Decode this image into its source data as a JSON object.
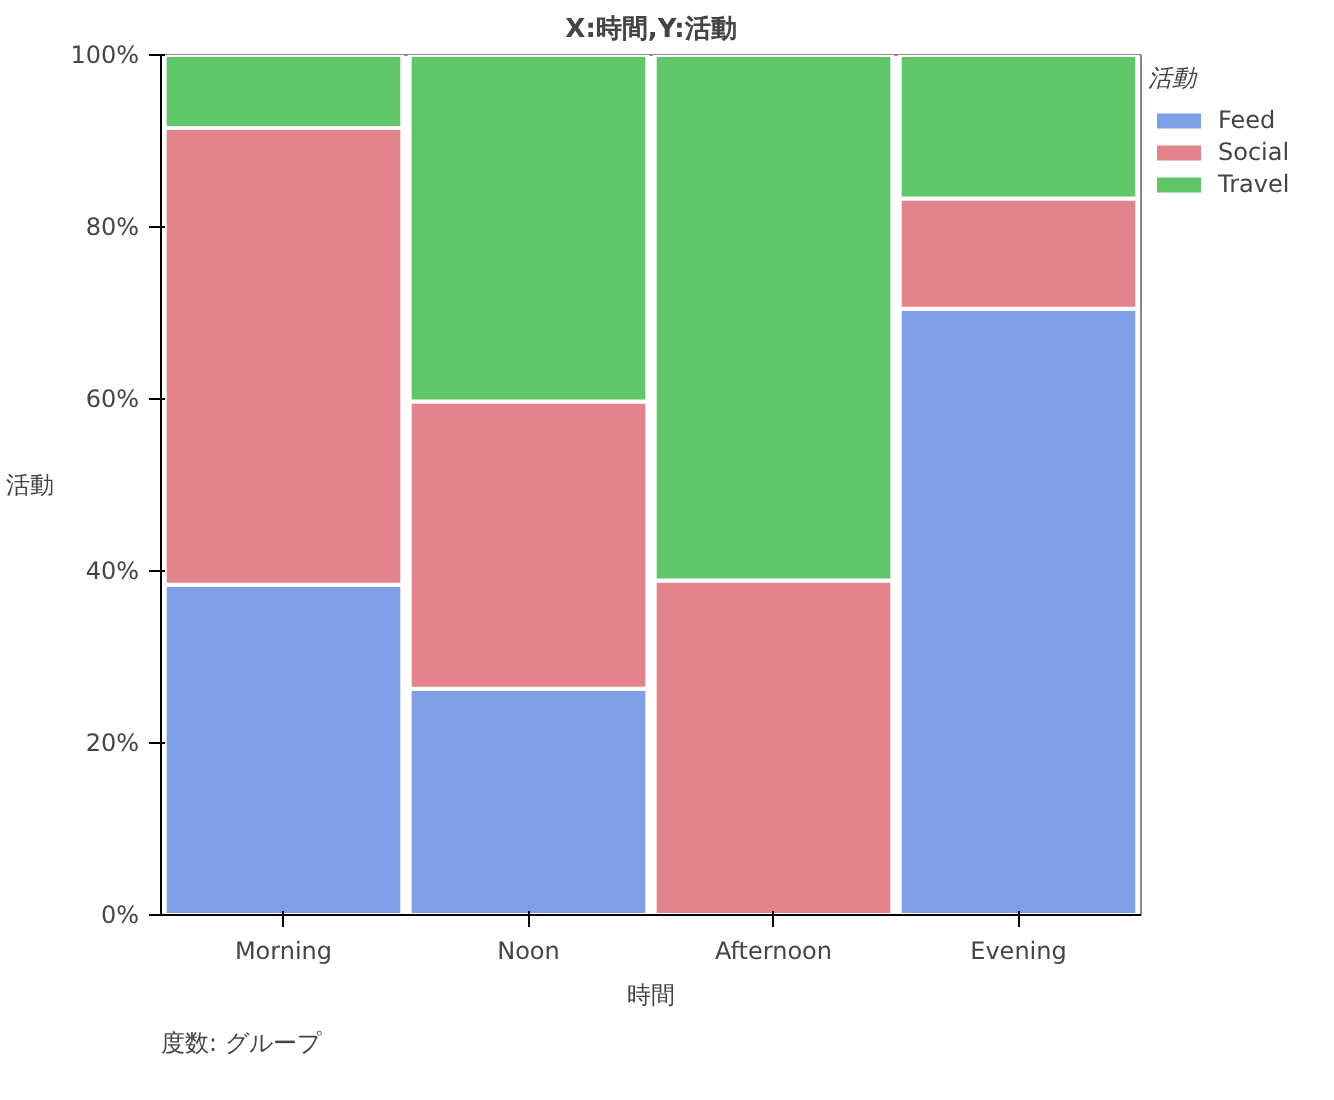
{
  "chart_data": {
    "type": "bar",
    "title": "X:時間,Y:活動",
    "xlabel": "時間",
    "ylabel": "活動",
    "legend_title": "活動",
    "stacked": true,
    "categories": [
      "Morning",
      "Noon",
      "Afternoon",
      "Evening"
    ],
    "series": [
      {
        "name": "Feed",
        "color": "#7f9fe6",
        "values": [
          38.4,
          26.3,
          0,
          70.5
        ]
      },
      {
        "name": "Social",
        "color": "#e3838c",
        "values": [
          53.1,
          33.4,
          38.9,
          12.8
        ]
      },
      {
        "name": "Travel",
        "color": "#5fc66a",
        "values": [
          8.5,
          40.3,
          61.1,
          16.7
        ]
      }
    ],
    "ylim": [
      0,
      100
    ],
    "yticks": [
      {
        "value": 0,
        "label": "0%"
      },
      {
        "value": 20,
        "label": "20%"
      },
      {
        "value": 40,
        "label": "40%"
      },
      {
        "value": 60,
        "label": "60%"
      },
      {
        "value": 80,
        "label": "80%"
      },
      {
        "value": 100,
        "label": "100%"
      }
    ],
    "legend": "top right",
    "annotations": [
      "度数: グループ"
    ]
  }
}
